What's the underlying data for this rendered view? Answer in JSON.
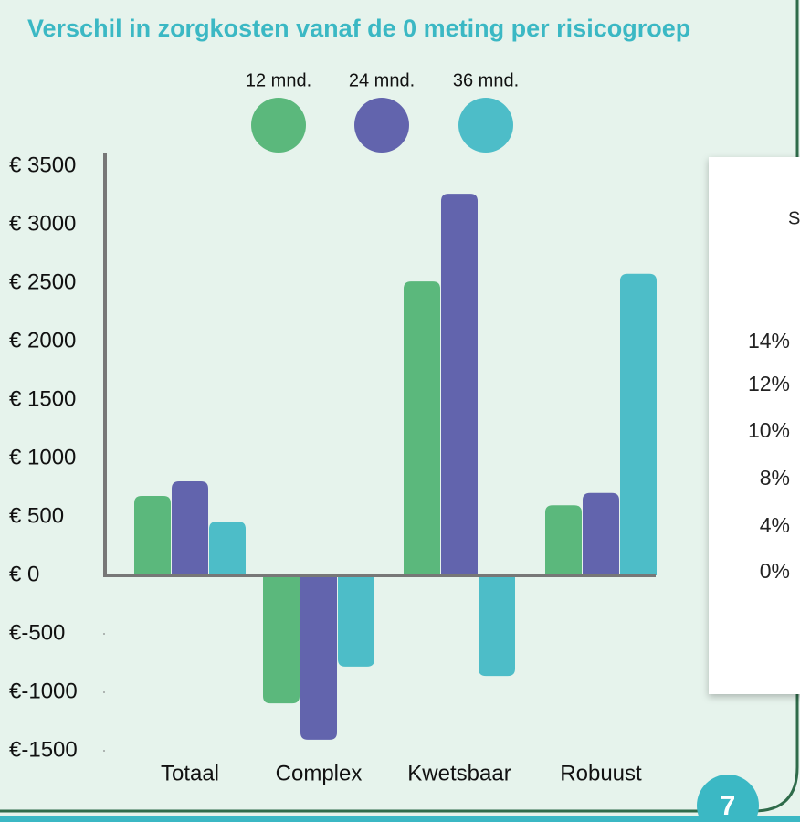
{
  "chart_data": {
    "type": "bar",
    "title": "Verschil in zorgkosten vanaf de 0 meting per risicogroep",
    "categories": [
      "Totaal",
      "Complex",
      "Kwetsbaar",
      "Robuust"
    ],
    "series": [
      {
        "name": "12 mnd.",
        "color": "#5bb87c",
        "values": [
          680,
          -1095,
          2515,
          600
        ]
      },
      {
        "name": "24 mnd.",
        "color": "#6264ad",
        "values": [
          805,
          -1405,
          3265,
          705
        ]
      },
      {
        "name": "36 mnd.",
        "color": "#4dbdc8",
        "values": [
          460,
          -780,
          -860,
          2580
        ]
      }
    ],
    "ylim": [
      -1500,
      3500
    ],
    "yticks": [
      {
        "value": 3500,
        "label": "€ 3500"
      },
      {
        "value": 3000,
        "label": "€ 3000"
      },
      {
        "value": 2500,
        "label": "€ 2500"
      },
      {
        "value": 2000,
        "label": "€ 2000"
      },
      {
        "value": 1500,
        "label": "€ 1500"
      },
      {
        "value": 1000,
        "label": "€ 1000"
      },
      {
        "value": 500,
        "label": "€ 500"
      },
      {
        "value": 0,
        "label": "€ 0"
      },
      {
        "value": -500,
        "label": "€-500"
      },
      {
        "value": -1000,
        "label": "€-1000"
      },
      {
        "value": -1500,
        "label": "€-1500"
      }
    ]
  },
  "side_panel": {
    "title_fragment": "S",
    "labels": [
      "14%",
      "12%",
      "10%",
      "8%",
      "4%",
      "0%"
    ]
  },
  "page_number": "7"
}
